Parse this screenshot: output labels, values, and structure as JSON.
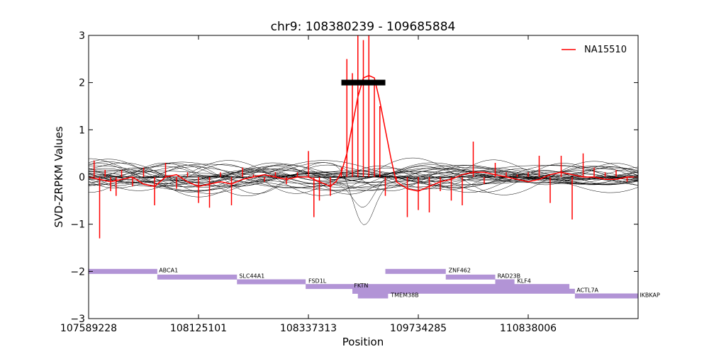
{
  "chart_data": {
    "type": "line",
    "title": "chr9: 108380239 - 109685884",
    "xlabel": "Position",
    "ylabel": "SVD-ZRPKM Values",
    "ylim": [
      -3,
      3
    ],
    "yticks": [
      -3,
      -2,
      -1,
      0,
      1,
      2,
      3
    ],
    "ytick_labels": [
      "−3",
      "−2",
      "−1",
      "0",
      "1",
      "2",
      "3"
    ],
    "xlim": [
      0,
      100
    ],
    "xticks": [
      0,
      20,
      40,
      60,
      80
    ],
    "xtick_labels": [
      "107589228",
      "108125101",
      "108337313",
      "109734285",
      "110838006"
    ],
    "grid": false,
    "legend": {
      "position": "top-right",
      "entries": [
        "NA15510"
      ]
    },
    "colors": {
      "sample": "#ff0000",
      "background": "#000000",
      "cnv_call": "#000000",
      "gene": "#b294d6"
    },
    "cnv_call": {
      "x_start": 46,
      "x_end": 54,
      "y": 2.0
    },
    "series": [
      {
        "name": "NA15510",
        "x": [
          0,
          2,
          4,
          6,
          8,
          10,
          12,
          14,
          16,
          18,
          20,
          22,
          24,
          26,
          28,
          30,
          32,
          34,
          36,
          38,
          40,
          42,
          44,
          45,
          46,
          47,
          48,
          49,
          50,
          51,
          52,
          53,
          54,
          55,
          56,
          58,
          60,
          62,
          64,
          66,
          68,
          70,
          72,
          74,
          76,
          78,
          80,
          82,
          84,
          86,
          88,
          90,
          92,
          94,
          96,
          98,
          100
        ],
        "y": [
          0.0,
          -0.05,
          -0.1,
          -0.05,
          0.0,
          -0.15,
          -0.2,
          0.0,
          0.05,
          -0.1,
          -0.2,
          -0.15,
          -0.1,
          -0.15,
          -0.05,
          0.0,
          0.05,
          0.0,
          -0.05,
          0.0,
          0.0,
          -0.1,
          -0.2,
          -0.1,
          0.1,
          0.5,
          1.1,
          1.7,
          2.1,
          2.15,
          2.1,
          1.6,
          1.0,
          0.4,
          -0.1,
          -0.25,
          -0.3,
          -0.2,
          -0.1,
          -0.05,
          0.05,
          0.1,
          0.1,
          0.05,
          0.0,
          -0.05,
          -0.1,
          -0.05,
          0.05,
          0.1,
          0.05,
          0.0,
          0.0,
          -0.05,
          -0.05,
          0.0,
          0.0
        ]
      }
    ],
    "sample_spikes": {
      "x": [
        1,
        2,
        3,
        4,
        5,
        6,
        8,
        10,
        12,
        14,
        16,
        18,
        20,
        22,
        24,
        26,
        28,
        30,
        32,
        34,
        36,
        38,
        40,
        41,
        42,
        44,
        46,
        47,
        48,
        49,
        50,
        51,
        52,
        53,
        54,
        56,
        58,
        60,
        62,
        64,
        66,
        68,
        70,
        72,
        74,
        76,
        78,
        80,
        82,
        84,
        86,
        88,
        90,
        92,
        94,
        96,
        98
      ],
      "y": [
        0.35,
        -1.3,
        0.15,
        -0.3,
        -0.4,
        0.15,
        -0.2,
        0.2,
        -0.6,
        0.3,
        -0.25,
        0.1,
        -0.55,
        -0.65,
        0.1,
        -0.6,
        0.2,
        0.05,
        -0.1,
        0.1,
        -0.15,
        0.1,
        0.55,
        -0.85,
        -0.5,
        -0.4,
        0.2,
        2.5,
        2.2,
        3.0,
        2.9,
        3.0,
        2.0,
        1.5,
        -0.4,
        -0.1,
        -0.85,
        -0.7,
        -0.75,
        -0.3,
        -0.5,
        -0.6,
        0.75,
        -0.15,
        0.3,
        0.1,
        0.05,
        0.1,
        0.45,
        -0.55,
        0.45,
        -0.9,
        0.5,
        0.2,
        0.1,
        0.15,
        -0.1
      ]
    },
    "background_samples": {
      "count": 30,
      "note_seed": 7
    },
    "genes": [
      {
        "name": "ABCA1",
        "start": 0,
        "end": 12.5,
        "y": -2.0
      },
      {
        "name": "ABCA1",
        "start": 12.5,
        "end": 27,
        "y": -2.12
      },
      {
        "name": "SLC44A1",
        "start": 27,
        "end": 39.5,
        "y": -2.22
      },
      {
        "name": "FSD1L",
        "start": 39.5,
        "end": 48,
        "y": -2.32
      },
      {
        "name": "FKTN",
        "start": 48,
        "end": 58,
        "y": -2.42
      },
      {
        "name": "TMEM38B",
        "start": 49,
        "end": 54.5,
        "y": -2.52
      },
      {
        "name": "ZNF462",
        "start": 54,
        "end": 65,
        "y": -2.0
      },
      {
        "name": "RAD23B",
        "start": 65,
        "end": 74,
        "y": -2.12
      },
      {
        "name": "KLF4",
        "start": 74,
        "end": 77.5,
        "y": -2.22
      },
      {
        "name": "",
        "start": 48,
        "end": 87.5,
        "y": -2.32
      },
      {
        "name": "ACTL7A",
        "start": 48,
        "end": 88.5,
        "y": -2.42
      },
      {
        "name": "IKBKAP",
        "start": 88.5,
        "end": 100,
        "y": -2.52
      }
    ],
    "gene_labels": [
      {
        "name": "ABCA1",
        "x": 12.8,
        "y": -1.99
      },
      {
        "name": "SLC44A1",
        "x": 27.4,
        "y": -2.11
      },
      {
        "name": "FSD1L",
        "x": 40.0,
        "y": -2.21
      },
      {
        "name": "FKTN",
        "x": 48.3,
        "y": -2.31
      },
      {
        "name": "TMEM38B",
        "x": 55.0,
        "y": -2.51
      },
      {
        "name": "ZNF462",
        "x": 65.5,
        "y": -1.99
      },
      {
        "name": "RAD23B",
        "x": 74.4,
        "y": -2.11
      },
      {
        "name": "KLF4",
        "x": 78.0,
        "y": -2.21
      },
      {
        "name": "ACTL7A",
        "x": 88.8,
        "y": -2.41
      },
      {
        "name": "IKBKAP",
        "x": 100.3,
        "y": -2.51
      }
    ]
  }
}
